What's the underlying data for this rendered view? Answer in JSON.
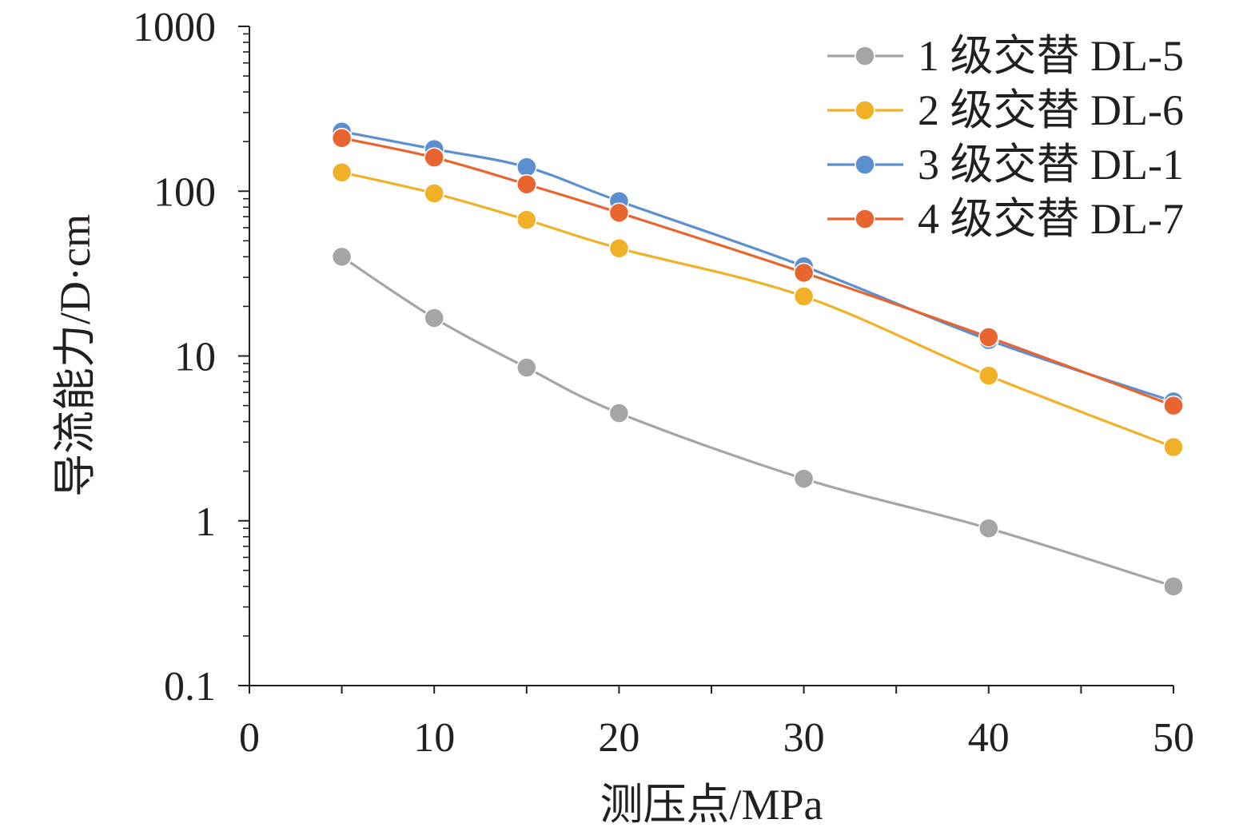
{
  "chart_data": {
    "type": "line",
    "xlabel": "测压点/MPa",
    "ylabel": "导流能力/D·cm",
    "y_scale": "log",
    "xlim": [
      0,
      50
    ],
    "ylim": [
      0.1,
      1000
    ],
    "x_ticks": [
      0,
      10,
      20,
      30,
      40,
      50
    ],
    "x_tick_labels": [
      "0",
      "10",
      "20",
      "30",
      "40",
      "50"
    ],
    "y_ticks": [
      0.1,
      1,
      10,
      100,
      1000
    ],
    "y_tick_labels": [
      "0.1",
      "1",
      "10",
      "100",
      "1000"
    ],
    "grid": false,
    "legend_position": "top-right",
    "x": [
      5,
      10,
      15,
      20,
      30,
      40,
      50
    ],
    "series": [
      {
        "name": "1 级交替 DL-5",
        "color": "#a5a5a5",
        "values": [
          40,
          17,
          8.5,
          4.5,
          1.8,
          0.9,
          0.4
        ]
      },
      {
        "name": "2 级交替 DL-6",
        "color": "#f0b127",
        "values": [
          130,
          97,
          67,
          45,
          23,
          7.6,
          2.8
        ]
      },
      {
        "name": "3 级交替 DL-1",
        "color": "#5b8fd0",
        "values": [
          230,
          180,
          140,
          87,
          35,
          12.5,
          5.3
        ]
      },
      {
        "name": "4 级交替 DL-7",
        "color": "#e9652f",
        "values": [
          210,
          160,
          110,
          74,
          32,
          13,
          5
        ]
      }
    ]
  }
}
